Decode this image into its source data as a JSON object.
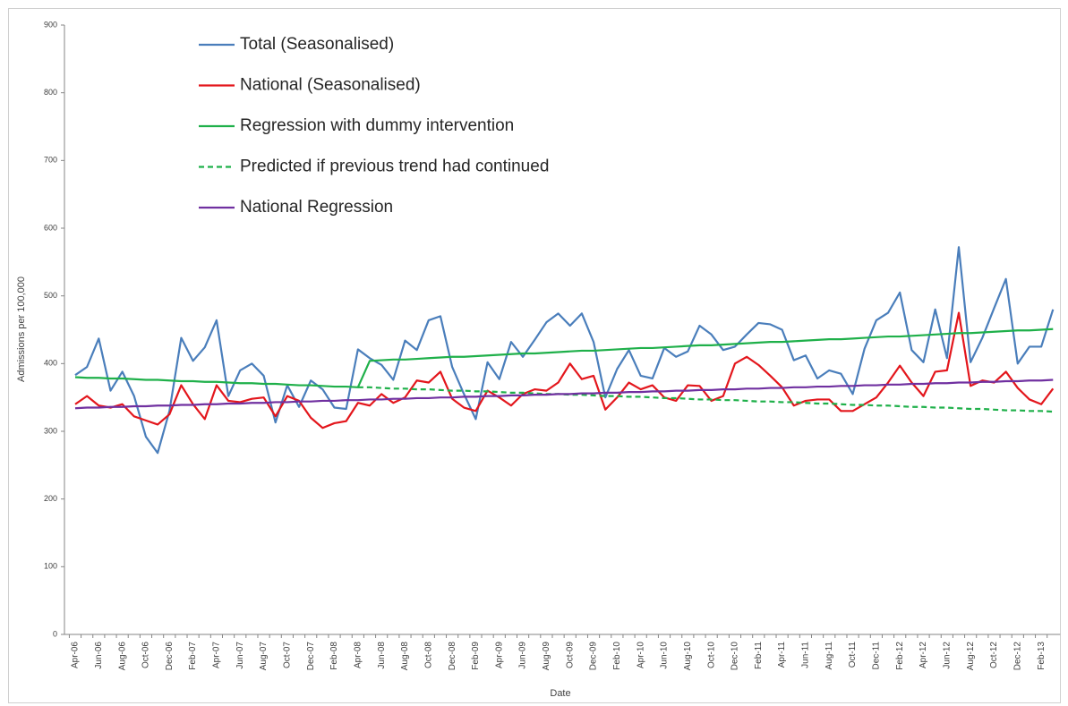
{
  "chart_data": {
    "type": "line",
    "y_label": "Admissions per 100,000",
    "x_label": "Date",
    "categories": [
      "Apr-06",
      null,
      "Jun-06",
      null,
      "Aug-06",
      null,
      "Oct-06",
      null,
      "Dec-06",
      null,
      "Feb-07",
      null,
      "Apr-07",
      null,
      "Jun-07",
      null,
      "Aug-07",
      null,
      "Oct-07",
      null,
      "Dec-07",
      null,
      "Feb-08",
      null,
      "Apr-08",
      null,
      "Jun-08",
      null,
      "Aug-08",
      null,
      "Oct-08",
      null,
      "Dec-08",
      null,
      "Feb-09",
      null,
      "Apr-09",
      null,
      "Jun-09",
      null,
      "Aug-09",
      null,
      "Oct-09",
      null,
      "Dec-09",
      null,
      "Feb-10",
      null,
      "Apr-10",
      null,
      "Jun-10",
      null,
      "Aug-10",
      null,
      "Oct-10",
      null,
      "Dec-10",
      null,
      "Feb-11",
      null,
      "Apr-11",
      null,
      "Jun-11",
      null,
      "Aug-11",
      null,
      "Oct-11",
      null,
      "Dec-11",
      null,
      "Feb-12",
      null,
      "Apr-12",
      null,
      "Jun-12",
      null,
      "Aug-12",
      null,
      "Oct-12",
      null,
      "Dec-12",
      null,
      "Feb-13",
      null
    ],
    "series": [
      {
        "name": "Total (Seasonalised)",
        "color": "#4a7ebb",
        "dashed": false,
        "values": [
          383,
          395,
          437,
          360,
          388,
          352,
          292,
          268,
          330,
          438,
          404,
          424,
          464,
          352,
          390,
          400,
          382,
          313,
          368,
          336,
          375,
          362,
          335,
          333,
          421,
          408,
          398,
          376,
          434,
          420,
          464,
          470,
          395,
          355,
          318,
          402,
          377,
          432,
          410,
          435,
          461,
          474,
          456,
          474,
          432,
          350,
          392,
          420,
          382,
          378,
          423,
          410,
          418,
          456,
          443,
          420,
          425,
          443,
          460,
          458,
          450,
          405,
          412,
          378,
          390,
          385,
          355,
          422,
          464,
          475,
          505,
          420,
          402,
          480,
          408,
          572,
          402,
          438,
          482,
          525,
          400,
          425,
          425,
          480
        ]
      },
      {
        "name": "National (Seasonalised)",
        "color": "#e3161c",
        "dashed": false,
        "values": [
          340,
          352,
          338,
          335,
          340,
          322,
          316,
          310,
          325,
          368,
          340,
          318,
          368,
          345,
          343,
          348,
          350,
          322,
          352,
          345,
          320,
          305,
          312,
          315,
          342,
          338,
          355,
          342,
          350,
          375,
          372,
          388,
          348,
          335,
          330,
          360,
          350,
          338,
          355,
          362,
          360,
          372,
          400,
          377,
          382,
          332,
          350,
          372,
          362,
          368,
          350,
          345,
          368,
          367,
          345,
          352,
          400,
          410,
          398,
          382,
          365,
          338,
          345,
          347,
          347,
          330,
          330,
          340,
          350,
          372,
          397,
          372,
          352,
          388,
          390,
          475,
          367,
          375,
          372,
          388,
          364,
          347,
          340,
          363
        ]
      },
      {
        "name": "Regression with dummy intervention",
        "color": "#1fb04a",
        "dashed": false,
        "values": [
          380,
          379,
          379,
          378,
          378,
          377,
          376,
          376,
          375,
          374,
          374,
          373,
          373,
          372,
          371,
          371,
          370,
          370,
          369,
          368,
          368,
          367,
          366,
          366,
          365,
          404,
          405,
          406,
          406,
          407,
          408,
          409,
          410,
          410,
          411,
          412,
          413,
          414,
          415,
          415,
          416,
          417,
          418,
          419,
          419,
          420,
          421,
          422,
          423,
          423,
          424,
          425,
          426,
          427,
          427,
          428,
          429,
          430,
          431,
          432,
          432,
          433,
          434,
          435,
          436,
          436,
          437,
          438,
          439,
          440,
          440,
          441,
          442,
          443,
          444,
          445,
          445,
          446,
          447,
          448,
          449,
          449,
          450,
          451
        ]
      },
      {
        "name": "Predicted if previous trend had continued",
        "color": "#1fb04a",
        "dashed": true,
        "values": [
          null,
          null,
          null,
          null,
          null,
          null,
          null,
          null,
          null,
          null,
          null,
          null,
          null,
          null,
          null,
          null,
          null,
          null,
          null,
          null,
          null,
          null,
          null,
          null,
          365,
          365,
          364,
          363,
          363,
          362,
          362,
          361,
          360,
          360,
          359,
          359,
          358,
          357,
          357,
          356,
          355,
          355,
          354,
          354,
          353,
          352,
          352,
          351,
          351,
          350,
          349,
          349,
          348,
          347,
          347,
          346,
          346,
          345,
          344,
          344,
          343,
          343,
          342,
          341,
          341,
          340,
          339,
          339,
          338,
          338,
          337,
          336,
          336,
          335,
          335,
          334,
          333,
          333,
          332,
          331,
          331,
          330,
          330,
          329
        ]
      },
      {
        "name": "National Regression",
        "color": "#7030a0",
        "dashed": false,
        "values": [
          334,
          335,
          335,
          336,
          336,
          337,
          337,
          338,
          338,
          339,
          339,
          340,
          340,
          341,
          341,
          342,
          342,
          343,
          343,
          344,
          344,
          345,
          345,
          346,
          346,
          347,
          347,
          348,
          348,
          349,
          349,
          350,
          350,
          351,
          351,
          352,
          352,
          353,
          353,
          354,
          354,
          355,
          355,
          356,
          356,
          357,
          357,
          358,
          358,
          359,
          359,
          360,
          360,
          361,
          361,
          362,
          362,
          363,
          363,
          364,
          364,
          365,
          365,
          366,
          366,
          367,
          367,
          368,
          368,
          369,
          369,
          370,
          370,
          371,
          371,
          372,
          372,
          373,
          373,
          374,
          374,
          375,
          375,
          376
        ]
      }
    ],
    "ylim": [
      0,
      900
    ],
    "yticks": [
      0,
      100,
      200,
      300,
      400,
      500,
      600,
      700,
      800,
      900
    ]
  }
}
